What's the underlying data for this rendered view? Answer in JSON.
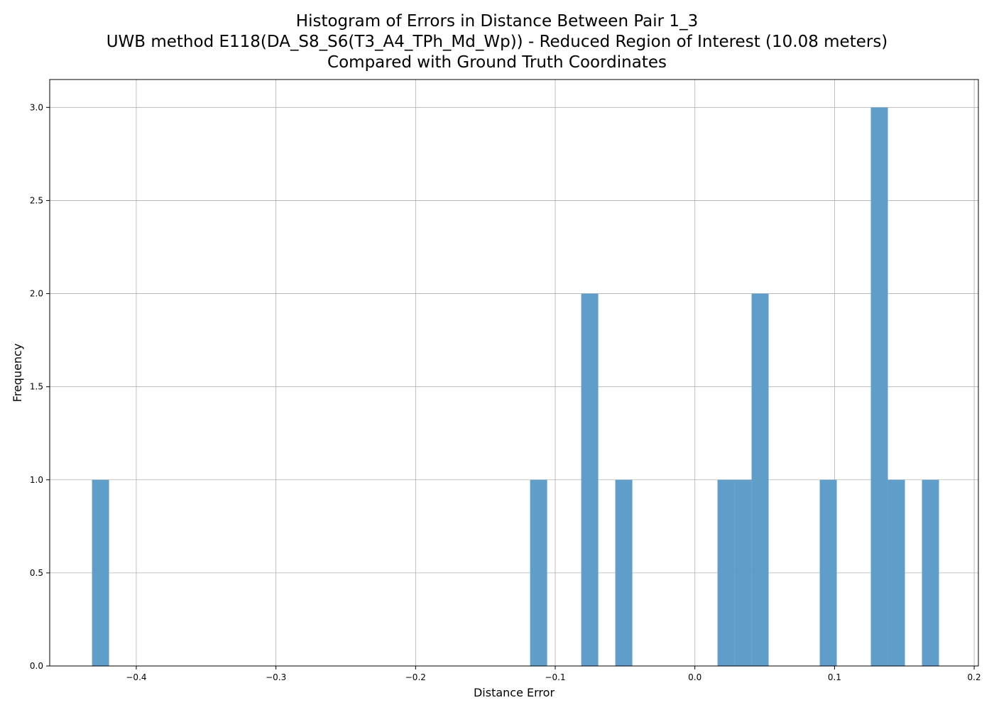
{
  "chart_data": {
    "type": "bar",
    "title_lines": [
      "Histogram of Errors in Distance Between Pair 1_3",
      "UWB method E118(DA_S8_S6(T3_A4_TPh_Md_Wp)) - Reduced Region of Interest (10.08 meters)",
      "Compared with Ground Truth Coordinates"
    ],
    "xlabel": "Distance Error",
    "ylabel": "Frequency",
    "xlim": [
      -0.462,
      0.203
    ],
    "ylim": [
      0,
      3.15
    ],
    "grid": true,
    "bar_color": "#5f9ec9",
    "x_ticks": [
      {
        "value": -0.4,
        "label": "−0.4"
      },
      {
        "value": -0.3,
        "label": "−0.3"
      },
      {
        "value": -0.2,
        "label": "−0.2"
      },
      {
        "value": -0.1,
        "label": "−0.1"
      },
      {
        "value": 0.0,
        "label": "0.0"
      },
      {
        "value": 0.1,
        "label": "0.1"
      },
      {
        "value": 0.2,
        "label": "0.2"
      }
    ],
    "y_ticks": [
      {
        "value": 0.0,
        "label": "0.0"
      },
      {
        "value": 0.5,
        "label": "0.5"
      },
      {
        "value": 1.0,
        "label": "1.0"
      },
      {
        "value": 1.5,
        "label": "1.5"
      },
      {
        "value": 2.0,
        "label": "2.0"
      },
      {
        "value": 2.5,
        "label": "2.5"
      },
      {
        "value": 3.0,
        "label": "3.0"
      }
    ],
    "bins": [
      {
        "x0": -0.4317,
        "x1": -0.4195,
        "count": 1
      },
      {
        "x0": -0.118,
        "x1": -0.1058,
        "count": 1
      },
      {
        "x0": -0.0814,
        "x1": -0.0692,
        "count": 2
      },
      {
        "x0": -0.057,
        "x1": -0.0448,
        "count": 1
      },
      {
        "x0": 0.0162,
        "x1": 0.0284,
        "count": 1
      },
      {
        "x0": 0.0284,
        "x1": 0.0406,
        "count": 1
      },
      {
        "x0": 0.0406,
        "x1": 0.0528,
        "count": 2
      },
      {
        "x0": 0.0894,
        "x1": 0.1016,
        "count": 1
      },
      {
        "x0": 0.126,
        "x1": 0.1382,
        "count": 3
      },
      {
        "x0": 0.1382,
        "x1": 0.1504,
        "count": 1
      },
      {
        "x0": 0.1626,
        "x1": 0.1748,
        "count": 1
      }
    ]
  }
}
